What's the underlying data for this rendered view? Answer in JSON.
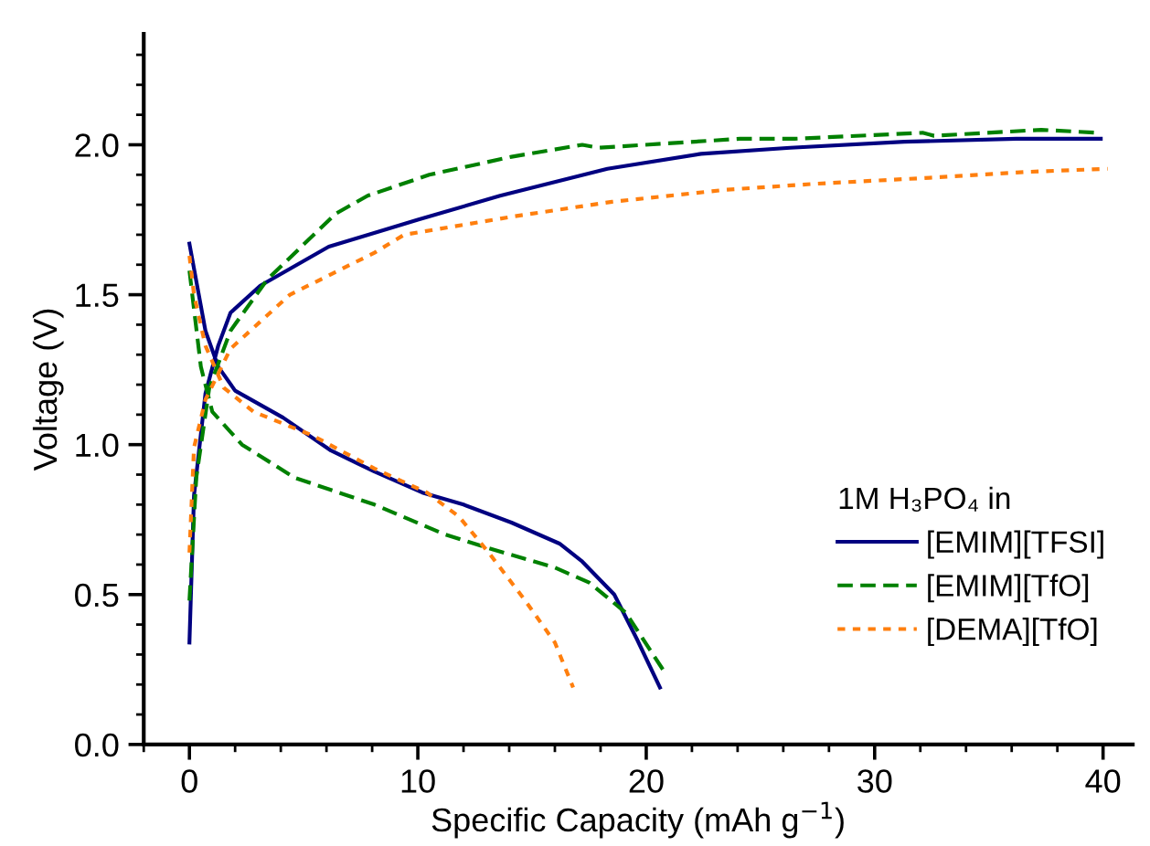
{
  "chart_data": {
    "type": "line",
    "xlabel": "Specific Capacity (mAh g$^{−1}$)",
    "ylabel": "Voltage (V)",
    "legend_title": "1M H₃PO₄ in",
    "legend": "bottom right",
    "grid": false,
    "xlim": [
      -2,
      41.3
    ],
    "ylim": [
      0,
      2.37
    ],
    "xticks": [
      0,
      10,
      20,
      30,
      40
    ],
    "yticks": [
      {
        "value": 0,
        "label": "0.0"
      },
      {
        "value": 0.5,
        "label": "0.5"
      },
      {
        "value": 1,
        "label": "1.0"
      },
      {
        "value": 1.5,
        "label": "1.5"
      },
      {
        "value": 2,
        "label": "2.0"
      }
    ],
    "series": [
      {
        "name": "[EMIM][TFSI]",
        "color": "#000080",
        "line_style": "solid",
        "x": [
          0,
          0.2,
          0.7,
          1.26,
          1.8,
          3.1,
          6.1,
          10,
          13.6,
          18.3,
          22.4,
          26.3,
          31.3,
          36.2,
          39.9,
          null,
          0,
          0.7,
          1.26,
          2.0,
          4.1,
          6.2,
          8.1,
          10.2,
          12,
          14.1,
          16.2,
          17.2,
          18.6,
          19.6,
          20.6
        ],
        "values": [
          0.34,
          0.83,
          1.17,
          1.33,
          1.44,
          1.53,
          1.66,
          1.75,
          1.83,
          1.92,
          1.97,
          1.99,
          2.01,
          2.02,
          2.02,
          null,
          1.67,
          1.38,
          1.26,
          1.18,
          1.09,
          0.98,
          0.91,
          0.84,
          0.8,
          0.74,
          0.67,
          0.61,
          0.5,
          0.35,
          0.19
        ]
      },
      {
        "name": "[EMIM][TfO]",
        "color": "#008000",
        "line_style": "dashed",
        "x": [
          0,
          0.3,
          0.87,
          1.8,
          3.4,
          6.4,
          7.8,
          10.5,
          14.1,
          17.2,
          17.9,
          24.1,
          26.5,
          32.1,
          32.6,
          37.3,
          39.8,
          null,
          0,
          0.5,
          1.0,
          2.3,
          4.6,
          8.1,
          11.2,
          13.3,
          16,
          17.5,
          19.1,
          20.9
        ],
        "values": [
          0.48,
          0.89,
          1.19,
          1.38,
          1.55,
          1.77,
          1.83,
          1.9,
          1.96,
          2.0,
          1.99,
          2.02,
          2.02,
          2.04,
          2.03,
          2.05,
          2.04,
          null,
          1.58,
          1.26,
          1.11,
          1.0,
          0.89,
          0.8,
          0.7,
          0.65,
          0.59,
          0.54,
          0.44,
          0.23
        ]
      },
      {
        "name": "[DEMA][TfO]",
        "color": "#ff7f0e",
        "line_style": "dotted",
        "x": [
          0,
          0.2,
          0.7,
          1.8,
          4.4,
          8.1,
          9.4,
          14.1,
          18.5,
          23.5,
          27.4,
          32.4,
          36.8,
          40.2,
          null,
          0,
          0.2,
          0.7,
          1.5,
          2.8,
          5.4,
          8.1,
          10.4,
          11.8,
          13.1,
          14.7,
          16,
          16.8
        ],
        "values": [
          0.64,
          0.99,
          1.15,
          1.32,
          1.5,
          1.64,
          1.7,
          1.76,
          1.81,
          1.85,
          1.87,
          1.89,
          1.91,
          1.92,
          null,
          1.63,
          1.5,
          1.33,
          1.19,
          1.11,
          1.03,
          0.92,
          0.84,
          0.76,
          0.64,
          0.48,
          0.34,
          0.19
        ]
      }
    ]
  }
}
